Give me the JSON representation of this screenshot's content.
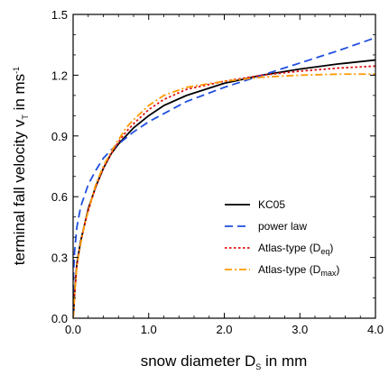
{
  "chart_data": {
    "type": "line",
    "title": "",
    "xlabel": "snow diameter D",
    "xlabel_sub": "S",
    "xlabel_tail": " in mm",
    "ylabel": "terminal fall velocity v",
    "ylabel_sub": "T",
    "ylabel_tail": " in ms",
    "ylabel_sup": "-1",
    "xlim": [
      0.0,
      4.0
    ],
    "ylim": [
      0.0,
      1.5
    ],
    "xticks": [
      "0.0",
      "1.0",
      "2.0",
      "3.0",
      "4.0"
    ],
    "yticks": [
      "0.0",
      "0.3",
      "0.6",
      "0.9",
      "1.2",
      "1.5"
    ],
    "grid": false,
    "legend_position": "bottom-right",
    "series": [
      {
        "name": "KC05",
        "color": "#000000",
        "dash": "solid",
        "x": [
          0.01,
          0.02,
          0.05,
          0.1,
          0.15,
          0.2,
          0.3,
          0.4,
          0.5,
          0.6,
          0.7,
          0.8,
          1.0,
          1.2,
          1.5,
          2.0,
          2.5,
          3.0,
          3.5,
          4.0
        ],
        "y": [
          0.05,
          0.13,
          0.27,
          0.38,
          0.46,
          0.54,
          0.65,
          0.74,
          0.81,
          0.86,
          0.9,
          0.94,
          1.0,
          1.05,
          1.1,
          1.16,
          1.2,
          1.23,
          1.255,
          1.275
        ]
      },
      {
        "name": "power law",
        "color": "#1f4fe0",
        "dash": "dashed",
        "x": [
          0.005,
          0.01,
          0.02,
          0.05,
          0.1,
          0.2,
          0.3,
          0.4,
          0.5,
          0.6,
          0.7,
          0.8,
          1.0,
          1.2,
          1.5,
          2.0,
          2.5,
          3.0,
          3.5,
          4.0
        ],
        "y": [
          0.21,
          0.26,
          0.33,
          0.45,
          0.55,
          0.66,
          0.73,
          0.79,
          0.83,
          0.86,
          0.89,
          0.92,
          0.97,
          1.01,
          1.07,
          1.14,
          1.2,
          1.26,
          1.32,
          1.385
        ]
      },
      {
        "name": "Atlas-type (D",
        "name_sub": "eq",
        "name_tail": ")",
        "color": "#e01010",
        "dash": "dotted",
        "x": [
          0.01,
          0.02,
          0.05,
          0.1,
          0.15,
          0.2,
          0.3,
          0.4,
          0.5,
          0.6,
          0.7,
          0.8,
          1.0,
          1.2,
          1.5,
          2.0,
          2.5,
          3.0,
          3.5,
          4.0
        ],
        "y": [
          0.05,
          0.12,
          0.26,
          0.37,
          0.46,
          0.53,
          0.65,
          0.74,
          0.81,
          0.87,
          0.92,
          0.96,
          1.03,
          1.08,
          1.13,
          1.17,
          1.2,
          1.22,
          1.235,
          1.245
        ]
      },
      {
        "name": "Atlas-type (D",
        "name_sub": "max",
        "name_tail": ")",
        "color": "#ff9900",
        "dash": "dashdot",
        "x": [
          0.01,
          0.02,
          0.05,
          0.1,
          0.15,
          0.2,
          0.3,
          0.4,
          0.5,
          0.6,
          0.7,
          0.8,
          1.0,
          1.2,
          1.5,
          2.0,
          2.5,
          3.0,
          3.5,
          4.0
        ],
        "y": [
          0.05,
          0.12,
          0.26,
          0.37,
          0.46,
          0.53,
          0.66,
          0.75,
          0.82,
          0.88,
          0.94,
          0.98,
          1.05,
          1.1,
          1.14,
          1.17,
          1.19,
          1.2,
          1.205,
          1.205
        ]
      }
    ]
  }
}
